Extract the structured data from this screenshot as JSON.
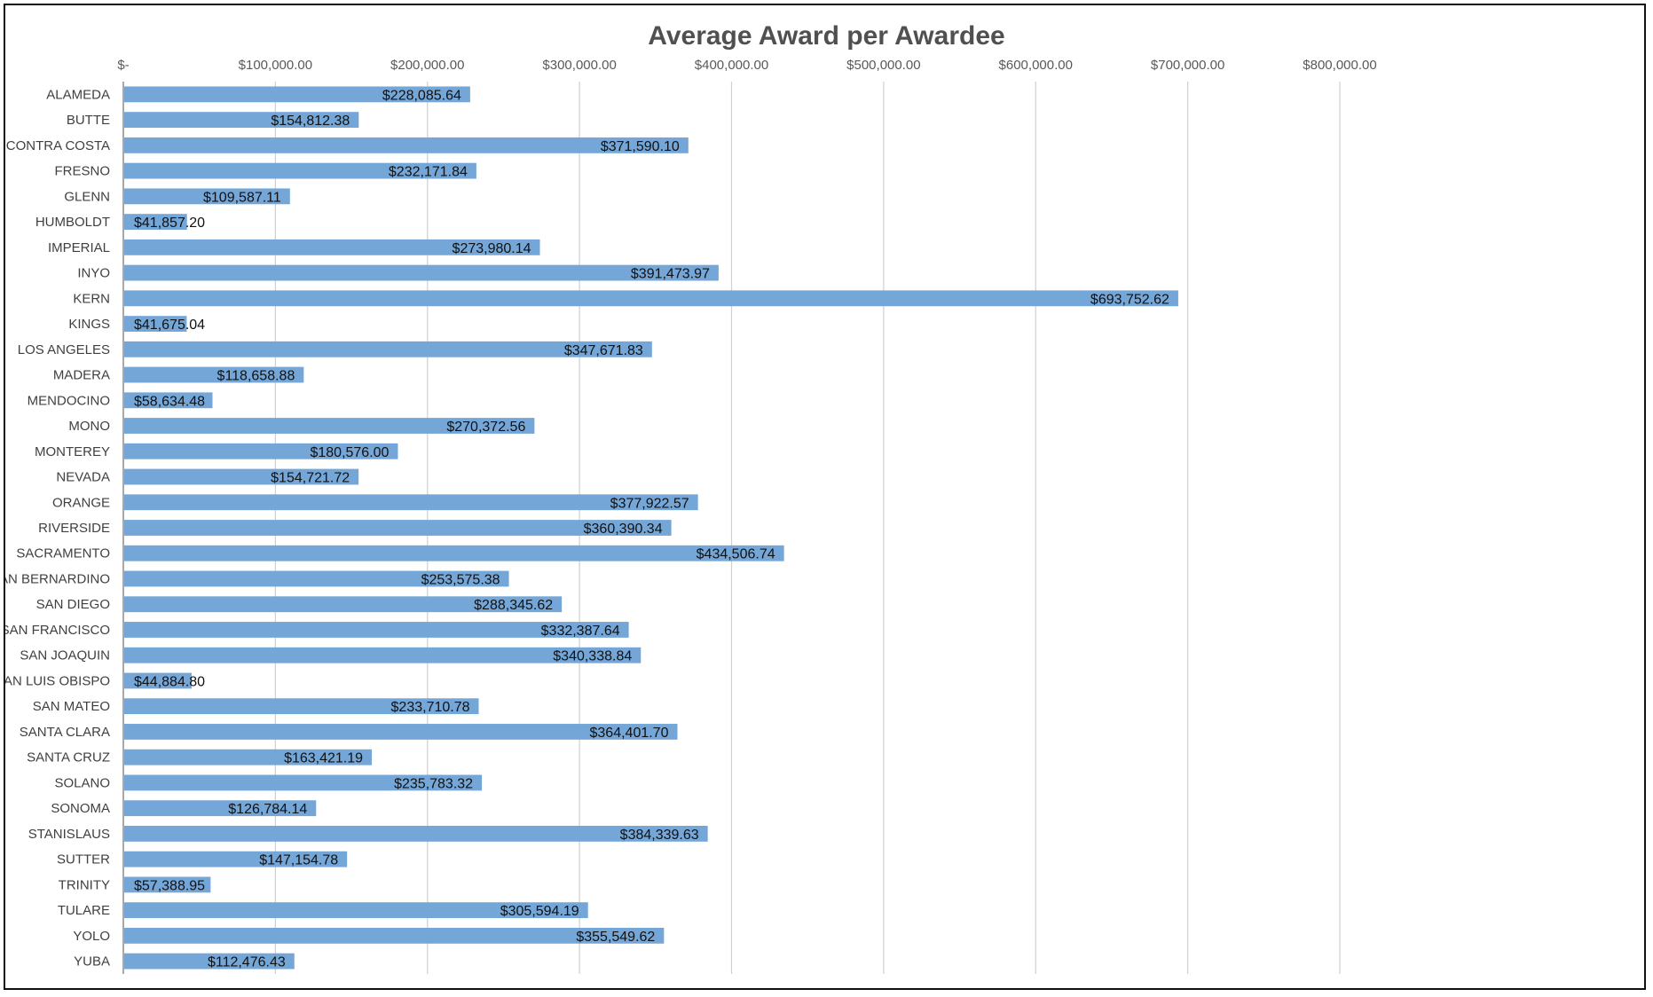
{
  "chart_data": {
    "type": "bar",
    "orientation": "horizontal",
    "title": "Average Award per Awardee",
    "xlabel": "",
    "ylabel": "",
    "xlim": [
      0,
      800000
    ],
    "tick_values": [
      0,
      100000,
      200000,
      300000,
      400000,
      500000,
      600000,
      700000,
      800000
    ],
    "tick_labels": [
      "$-",
      "$100,000.00",
      "$200,000.00",
      "$300,000.00",
      "$400,000.00",
      "$500,000.00",
      "$600,000.00",
      "$700,000.00",
      "$800,000.00"
    ],
    "axis_position": "top",
    "grid": true,
    "legend": "none",
    "bar_color": "#74a7d8",
    "categories": [
      "ALAMEDA",
      "BUTTE",
      "CONTRA COSTA",
      "FRESNO",
      "GLENN",
      "HUMBOLDT",
      "IMPERIAL",
      "INYO",
      "KERN",
      "KINGS",
      "LOS ANGELES",
      "MADERA",
      "MENDOCINO",
      "MONO",
      "MONTEREY",
      "NEVADA",
      "ORANGE",
      "RIVERSIDE",
      "SACRAMENTO",
      "SAN BERNARDINO",
      "SAN DIEGO",
      "SAN FRANCISCO",
      "SAN JOAQUIN",
      "SAN LUIS OBISPO",
      "SAN MATEO",
      "SANTA CLARA",
      "SANTA CRUZ",
      "SOLANO",
      "SONOMA",
      "STANISLAUS",
      "SUTTER",
      "TRINITY",
      "TULARE",
      "YOLO",
      "YUBA"
    ],
    "values": [
      228085.64,
      154812.38,
      371590.1,
      232171.84,
      109587.11,
      41857.2,
      273980.14,
      391473.97,
      693752.62,
      41675.04,
      347671.83,
      118658.88,
      58634.48,
      270372.56,
      180576.0,
      154721.72,
      377922.57,
      360390.34,
      434506.74,
      253575.38,
      288345.62,
      332387.64,
      340338.84,
      44884.8,
      233710.78,
      364401.7,
      163421.19,
      235783.32,
      126784.14,
      384339.63,
      147154.78,
      57388.95,
      305594.19,
      355549.62,
      112476.43
    ],
    "data_labels": [
      "$228,085.64",
      "$154,812.38",
      "$371,590.10",
      "$232,171.84",
      "$109,587.11",
      "$41,857.20",
      "$273,980.14",
      "$391,473.97",
      "$693,752.62",
      "$41,675.04",
      "$347,671.83",
      "$118,658.88",
      "$58,634.48",
      "$270,372.56",
      "$180,576.00",
      "$154,721.72",
      "$377,922.57",
      "$360,390.34",
      "$434,506.74",
      "$253,575.38",
      "$288,345.62",
      "$332,387.64",
      "$340,338.84",
      "$44,884.80",
      "$233,710.78",
      "$364,401.70",
      "$163,421.19",
      "$235,783.32",
      "$126,784.14",
      "$384,339.63",
      "$147,154.78",
      "$57,388.95",
      "$305,594.19",
      "$355,549.62",
      "$112,476.43"
    ]
  }
}
